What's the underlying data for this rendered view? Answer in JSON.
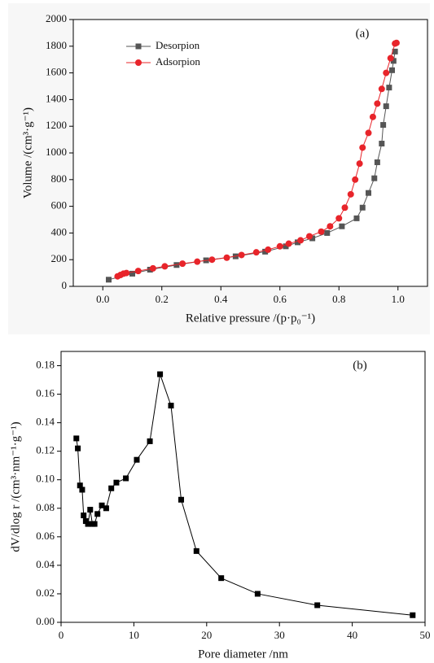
{
  "chart_data": [
    {
      "type": "line",
      "annotation": "(a)",
      "x_label": "Relative pressure /(p·p₀⁻¹)",
      "y_label": "Volume /(cm³·g⁻¹)",
      "xlim": [
        -0.1,
        1.1
      ],
      "ylim": [
        0,
        2000
      ],
      "xticks": [
        {
          "value": 0,
          "label": "0.0"
        },
        0.2,
        0.4,
        0.6,
        0.8,
        {
          "value": 1,
          "label": "1.0"
        }
      ],
      "yticks": [
        0,
        200,
        400,
        600,
        800,
        1000,
        1200,
        1400,
        1600,
        1800,
        2000
      ],
      "legend": "upper left",
      "series": [
        {
          "name": "Desorpion",
          "color": "#555555",
          "marker": "square",
          "x": [
            0.02,
            0.1,
            0.16,
            0.25,
            0.35,
            0.45,
            0.55,
            0.62,
            0.66,
            0.71,
            0.76,
            0.81,
            0.86,
            0.88,
            0.9,
            0.92,
            0.93,
            0.945,
            0.95,
            0.96,
            0.97,
            0.98,
            0.985,
            0.99
          ],
          "values": [
            50,
            95,
            125,
            160,
            195,
            225,
            260,
            300,
            330,
            360,
            400,
            450,
            510,
            590,
            700,
            810,
            930,
            1070,
            1210,
            1350,
            1490,
            1620,
            1690,
            1760
          ]
        },
        {
          "name": "Adsorpion",
          "color": "#e8242a",
          "marker": "circle",
          "x": [
            0.05,
            0.06,
            0.07,
            0.08,
            0.12,
            0.17,
            0.21,
            0.27,
            0.32,
            0.37,
            0.42,
            0.47,
            0.52,
            0.56,
            0.6,
            0.63,
            0.67,
            0.7,
            0.74,
            0.77,
            0.8,
            0.82,
            0.84,
            0.855,
            0.87,
            0.88,
            0.9,
            0.915,
            0.93,
            0.945,
            0.96,
            0.975,
            0.99,
            0.995
          ],
          "values": [
            75,
            85,
            95,
            100,
            115,
            135,
            150,
            170,
            185,
            200,
            215,
            235,
            255,
            275,
            300,
            320,
            345,
            375,
            410,
            450,
            510,
            590,
            690,
            800,
            920,
            1040,
            1150,
            1270,
            1370,
            1480,
            1600,
            1710,
            1820,
            1825
          ]
        }
      ]
    },
    {
      "type": "line",
      "annotation": "(b)",
      "x_label": "Pore diameter /nm",
      "y_label": "dV/dlog r /(cm³·nm⁻¹·g⁻¹)",
      "xlim": [
        0,
        50
      ],
      "ylim": [
        0,
        0.19
      ],
      "xticks": [
        0,
        10,
        20,
        30,
        40,
        50
      ],
      "yticks": [
        {
          "value": 0,
          "label": "0.00"
        },
        0.02,
        0.04,
        0.06,
        0.08,
        {
          "value": 0.1,
          "label": "0.10"
        },
        0.12,
        0.14,
        0.16,
        0.18
      ],
      "series": [
        {
          "color": "#000000",
          "marker": "square",
          "x": [
            2.1,
            2.3,
            2.6,
            2.9,
            3.1,
            3.4,
            3.7,
            4.0,
            4.3,
            4.6,
            5.0,
            5.6,
            6.2,
            6.9,
            7.6,
            8.9,
            10.4,
            12.2,
            13.6,
            15.1,
            16.5,
            18.6,
            22,
            27,
            35.2,
            48.3
          ],
          "values": [
            0.129,
            0.122,
            0.096,
            0.093,
            0.075,
            0.071,
            0.069,
            0.079,
            0.069,
            0.069,
            0.076,
            0.082,
            0.08,
            0.094,
            0.098,
            0.101,
            0.114,
            0.127,
            0.174,
            0.152,
            0.086,
            0.05,
            0.031,
            0.02,
            0.012,
            0.005
          ]
        }
      ]
    }
  ]
}
